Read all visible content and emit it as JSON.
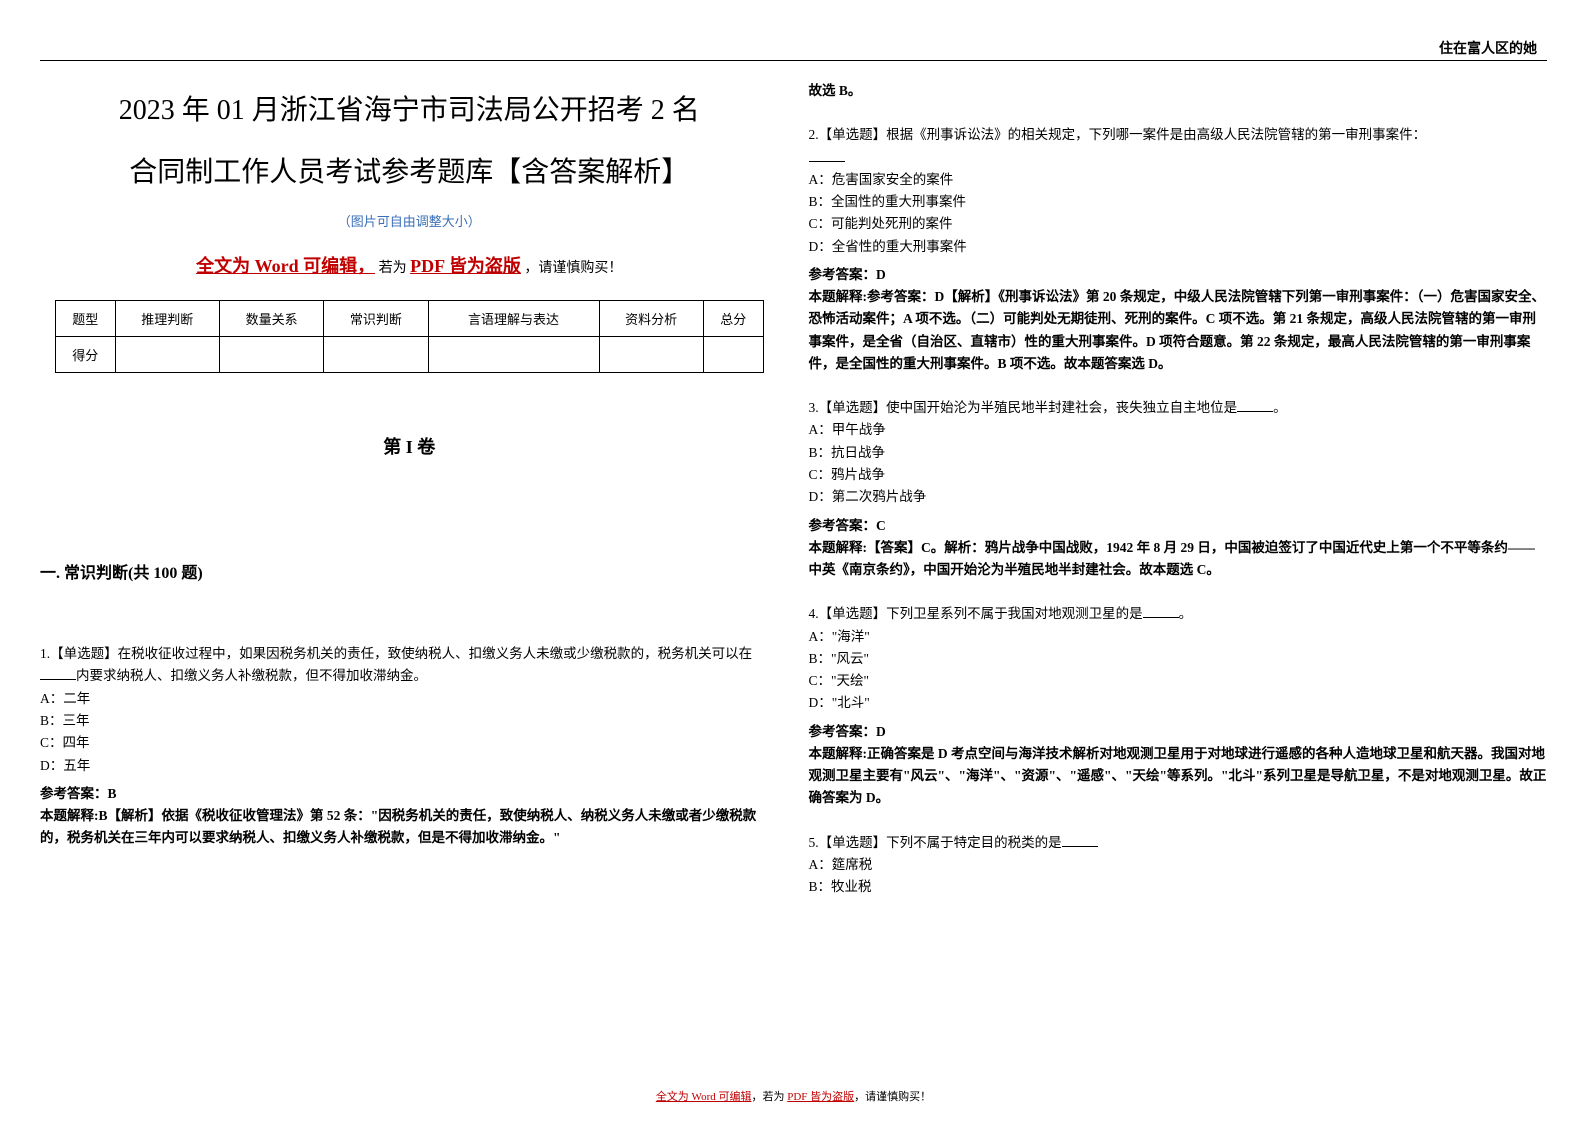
{
  "header": {
    "top_right": "住在富人区的她"
  },
  "left": {
    "title_line1": "2023 年 01 月浙江省海宁市司法局公开招考 2 名",
    "title_line2": "合同制工作人员考试参考题库【含答案解析】",
    "img_note": "（图片可自由调整大小）",
    "editable_prefix": "全文为 Word 可编辑，",
    "editable_mid": "若为",
    "editable_pdf": "PDF 皆为盗版",
    "editable_suffix": "，请谨慎购买！",
    "table_headers": [
      "题型",
      "推理判断",
      "数量关系",
      "常识判断",
      "言语理解与表达",
      "资料分析",
      "总分"
    ],
    "table_row_label": "得分",
    "volume": "第 I 卷",
    "section": "一. 常识判断(共 100 题)",
    "q1": {
      "stem_a": "1.【单选题】在税收征收过程中，如果因税务机关的责任，致使纳税人、扣缴义务人未缴或少缴税款的，税务机关可以在",
      "stem_b": "内要求纳税人、扣缴义务人补缴税款，但不得加收滞纳金。",
      "optA": "A：二年",
      "optB": "B：三年",
      "optC": "C：四年",
      "optD": "D：五年",
      "ans": "参考答案：B",
      "exp": "本题解释:B【解析】依据《税收征收管理法》第 52 条：\"因税务机关的责任，致使纳税人、纳税义务人未缴或者少缴税款的，税务机关在三年内可以要求纳税人、扣缴义务人补缴税款，但是不得加收滞纳金。\""
    }
  },
  "right": {
    "cont": "故选 B。",
    "q2": {
      "stem_a": "2.【单选题】根据《刑事诉讼法》的相关规定，下列哪一案件是由高级人民法院管辖的第一审刑事案件：",
      "optA": "A：危害国家安全的案件",
      "optB": "B：全国性的重大刑事案件",
      "optC": "C：可能判处死刑的案件",
      "optD": "D：全省性的重大刑事案件",
      "ans": "参考答案：D",
      "exp": "本题解释:参考答案：D【解析】《刑事诉讼法》第 20 条规定，中级人民法院管辖下列第一审刑事案件：（一）危害国家安全、恐怖活动案件；A 项不选。（二）可能判处无期徒刑、死刑的案件。C 项不选。第 21 条规定，高级人民法院管辖的第一审刑事案件，是全省（自治区、直辖市）性的重大刑事案件。D 项符合题意。第 22 条规定，最高人民法院管辖的第一审刑事案件，是全国性的重大刑事案件。B 项不选。故本题答案选 D。"
    },
    "q3": {
      "stem_a": "3.【单选题】使中国开始沦为半殖民地半封建社会，丧失独立自主地位是",
      "stem_b": "。",
      "optA": "A：甲午战争",
      "optB": "B：抗日战争",
      "optC": "C：鸦片战争",
      "optD": "D：第二次鸦片战争",
      "ans": "参考答案：C",
      "exp": "本题解释:【答案】C。解析：鸦片战争中国战败，1942 年 8 月 29 日，中国被迫签订了中国近代史上第一个不平等条约——中英《南京条约》，中国开始沦为半殖民地半封建社会。故本题选 C。"
    },
    "q4": {
      "stem_a": "4.【单选题】下列卫星系列不属于我国对地观测卫星的是",
      "stem_b": "。",
      "optA": "A：\"海洋\"",
      "optB": "B：\"风云\"",
      "optC": "C：\"天绘\"",
      "optD": "D：\"北斗\"",
      "ans": "参考答案：D",
      "exp": "本题解释:正确答案是 D 考点空间与海洋技术解析对地观测卫星用于对地球进行遥感的各种人造地球卫星和航天器。我国对地观测卫星主要有\"风云\"、\"海洋\"、\"资源\"、\"遥感\"、\"天绘\"等系列。\"北斗\"系列卫星是导航卫星，不是对地观测卫星。故正确答案为 D。"
    },
    "q5": {
      "stem_a": "5.【单选题】下列不属于特定目的税类的是",
      "optA": "A：筵席税",
      "optB": "B：牧业税"
    }
  },
  "footer": {
    "prefix": "全文为 Word 可编辑",
    "mid": "，若为 ",
    "pdf": "PDF 皆为盗版",
    "suffix": "，请谨慎购买！"
  },
  "colors": {
    "accent_red": "#c00000",
    "note_blue": "#3a6fb7",
    "text": "#000000",
    "bg": "#ffffff"
  }
}
